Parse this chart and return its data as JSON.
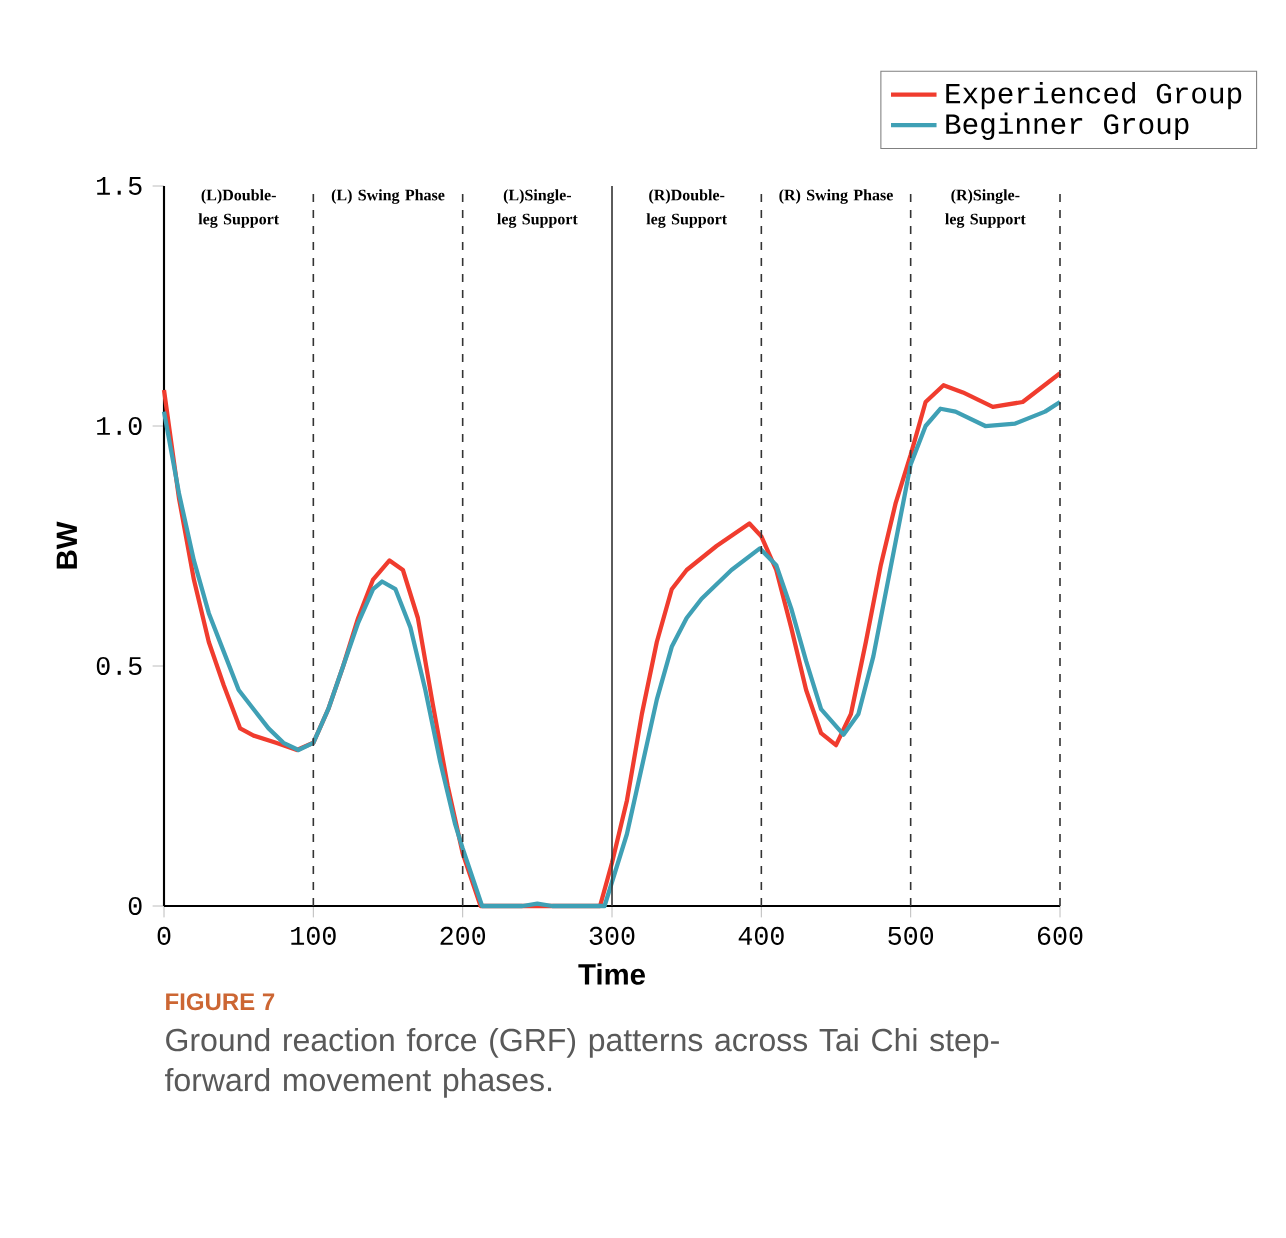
{
  "chart_data": {
    "type": "line",
    "xlabel": "Time",
    "ylabel": "BW",
    "xlim": [
      0,
      600
    ],
    "ylim": [
      0,
      1.5
    ],
    "xticks": [
      0,
      100,
      200,
      300,
      400,
      500,
      600
    ],
    "yticks": [
      0,
      0.5,
      {
        "value": 1.0,
        "label": "1.0"
      },
      1.5
    ],
    "grid": false,
    "legend": "top right",
    "line_style": "solid",
    "marker": "none",
    "series": [
      {
        "name": "Experienced Group",
        "color": "#f03c2e",
        "x": [
          0,
          10,
          20,
          30,
          40,
          51,
          60,
          75,
          89,
          100,
          110,
          120,
          130,
          140,
          151,
          160,
          170,
          180,
          190,
          200,
          212,
          292,
          300,
          310,
          320,
          330,
          340,
          350,
          370,
          392,
          400,
          410,
          420,
          430,
          440,
          450,
          460,
          470,
          480,
          490,
          500,
          510,
          522,
          535,
          555,
          575,
          600
        ],
        "values": [
          1.075,
          0.85,
          0.68,
          0.55,
          0.46,
          0.37,
          0.355,
          0.34,
          0.325,
          0.34,
          0.41,
          0.5,
          0.6,
          0.68,
          0.72,
          0.7,
          0.6,
          0.42,
          0.25,
          0.11,
          0,
          0,
          0.09,
          0.22,
          0.4,
          0.55,
          0.66,
          0.7,
          0.75,
          0.797,
          0.77,
          0.7,
          0.58,
          0.45,
          0.36,
          0.335,
          0.4,
          0.55,
          0.71,
          0.84,
          0.94,
          1.05,
          1.085,
          1.07,
          1.04,
          1.05,
          1.11
        ]
      },
      {
        "name": "Beginner Group",
        "color": "#3fa0b5",
        "x": [
          0,
          10,
          20,
          30,
          40,
          50,
          60,
          70,
          80,
          90,
          100,
          110,
          120,
          130,
          140,
          146,
          155,
          165,
          175,
          185,
          195,
          200,
          213,
          240,
          250,
          260,
          295,
          300,
          310,
          320,
          330,
          340,
          350,
          360,
          380,
          399,
          410,
          420,
          430,
          440,
          455,
          465,
          475,
          485,
          495,
          500,
          510,
          520,
          530,
          550,
          570,
          590,
          600
        ],
        "values": [
          1.03,
          0.86,
          0.72,
          0.61,
          0.53,
          0.45,
          0.41,
          0.37,
          0.34,
          0.325,
          0.34,
          0.41,
          0.5,
          0.59,
          0.66,
          0.676,
          0.66,
          0.58,
          0.45,
          0.3,
          0.17,
          0.12,
          0,
          0,
          0.005,
          0,
          0,
          0.05,
          0.15,
          0.29,
          0.43,
          0.54,
          0.6,
          0.64,
          0.7,
          0.745,
          0.71,
          0.62,
          0.51,
          0.41,
          0.357,
          0.4,
          0.52,
          0.68,
          0.84,
          0.92,
          1.0,
          1.036,
          1.03,
          1.0,
          1.005,
          1.03,
          1.05
        ]
      }
    ],
    "ref_lines": [
      {
        "axis": "x",
        "value": 100,
        "line_style": "dashed",
        "color": "#333333"
      },
      {
        "axis": "x",
        "value": 200,
        "line_style": "dashed",
        "color": "#333333"
      },
      {
        "axis": "x",
        "value": 300,
        "line_style": "solid",
        "color": "#333333"
      },
      {
        "axis": "x",
        "value": 400,
        "line_style": "dashed",
        "color": "#333333"
      },
      {
        "axis": "x",
        "value": 500,
        "line_style": "dashed",
        "color": "#333333"
      }
    ],
    "annotations": [
      "(L)Double-leg Support",
      "(L) Swing Phase",
      "(L)Single-leg Support",
      "(R)Double-leg Support",
      "(R) Swing Phase",
      "(R)Single-leg Support",
      "FIGURE 7",
      "Ground reaction force (GRF) patterns across Tai Chi step-forward movement phases."
    ]
  }
}
